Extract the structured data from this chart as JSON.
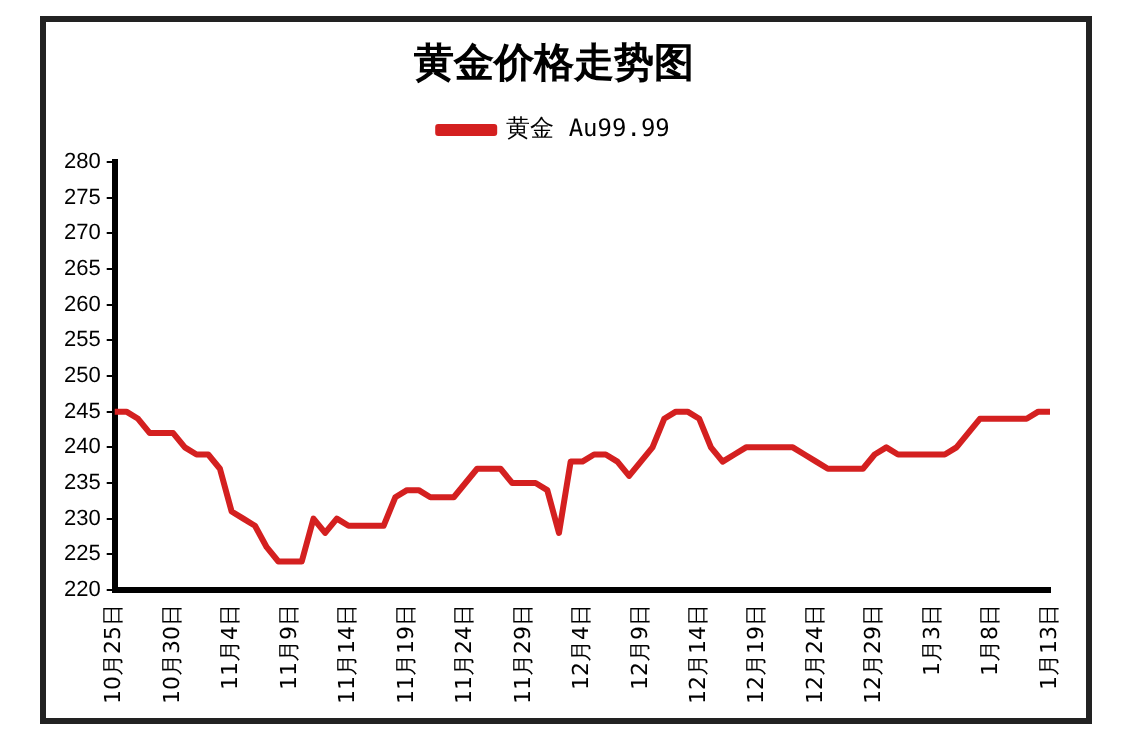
{
  "chart_data": {
    "type": "line",
    "title": "黄金价格走势图",
    "categories": [
      "10月25日",
      null,
      null,
      null,
      null,
      "10月30日",
      null,
      null,
      null,
      null,
      "11月4日",
      null,
      null,
      null,
      null,
      "11月9日",
      null,
      null,
      null,
      null,
      "11月14日",
      null,
      null,
      null,
      null,
      "11月19日",
      null,
      null,
      null,
      null,
      "11月24日",
      null,
      null,
      null,
      null,
      "11月29日",
      null,
      null,
      null,
      null,
      "12月4日",
      null,
      null,
      null,
      null,
      "12月9日",
      null,
      null,
      null,
      null,
      "12月14日",
      null,
      null,
      null,
      null,
      "12月19日",
      null,
      null,
      null,
      null,
      "12月24日",
      null,
      null,
      null,
      null,
      "12月29日",
      null,
      null,
      null,
      null,
      "1月3日",
      null,
      null,
      null,
      null,
      "1月8日",
      null,
      null,
      null,
      null,
      "1月13日"
    ],
    "series": [
      {
        "name": "黄金 Au99.99",
        "color": "#d42020",
        "values": [
          245,
          245,
          244,
          242,
          242,
          242,
          240,
          239,
          239,
          237,
          231,
          230,
          229,
          226,
          224,
          224,
          224,
          230,
          228,
          230,
          229,
          229,
          229,
          229,
          233,
          234,
          234,
          233,
          233,
          233,
          235,
          237,
          237,
          237,
          235,
          235,
          235,
          234,
          228,
          238,
          238,
          239,
          239,
          238,
          236,
          238,
          240,
          244,
          245,
          245,
          244,
          240,
          238,
          239,
          240,
          240,
          240,
          240,
          240,
          239,
          238,
          237,
          237,
          237,
          237,
          239,
          240,
          239,
          239,
          239,
          239,
          239,
          240,
          242,
          244,
          244,
          244,
          244,
          244,
          245,
          245
        ]
      }
    ],
    "ylim": [
      220,
      280
    ],
    "yticks": [
      220,
      225,
      230,
      235,
      240,
      245,
      250,
      255,
      260,
      265,
      270,
      275,
      280
    ],
    "grid": false,
    "legend": "top",
    "marker": "none",
    "line_style": "solid"
  }
}
